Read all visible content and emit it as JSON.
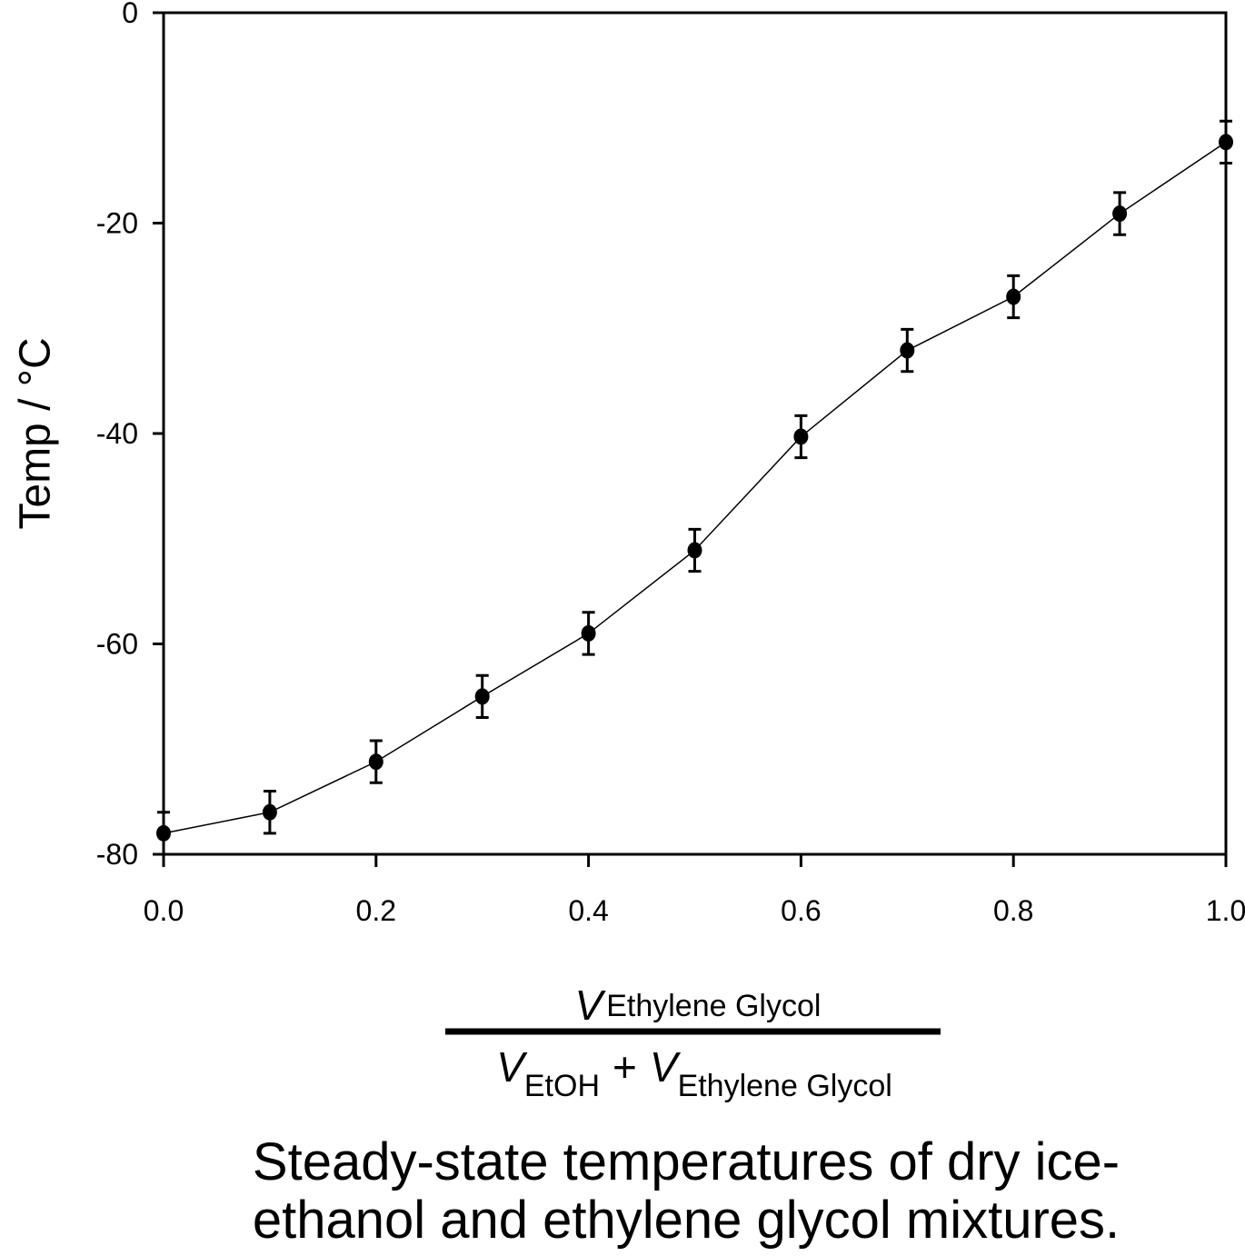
{
  "chart_data": {
    "type": "line",
    "ylabel": "Temp / °C",
    "xlabel": {
      "numerator": {
        "symbol": "V",
        "subscript": "Ethylene Glycol"
      },
      "denominator": {
        "terms": [
          {
            "symbol": "V",
            "subscript": "EtOH"
          },
          {
            "symbol": "V",
            "subscript": "Ethylene Glycol"
          }
        ],
        "operator": "+"
      }
    },
    "caption": [
      "Steady-state temperatures of dry ice-",
      "ethanol and ethylene glycol mixtures."
    ],
    "x": [
      0,
      0.1,
      0.2,
      0.3,
      0.4,
      0.5,
      0.6,
      0.7,
      0.8,
      0.9,
      1
    ],
    "series": [
      {
        "color": "#000000",
        "values": [
          -78,
          -76,
          -71.2,
          -65,
          -59,
          -51.1,
          -40.3,
          -32.1,
          -27,
          -19.1,
          -12.3
        ],
        "errors": [
          2,
          2,
          2,
          2,
          2,
          2,
          2,
          2,
          2,
          2,
          2
        ]
      }
    ],
    "xlim": [
      0,
      1
    ],
    "xticks": [
      {
        "value": 0,
        "label": "0.0"
      },
      0.2,
      0.4,
      0.6,
      0.8,
      {
        "value": 1,
        "label": "1.0"
      }
    ],
    "ylim": [
      -80,
      0
    ],
    "yticks": [
      -80,
      -60,
      -40,
      -20,
      0
    ]
  }
}
